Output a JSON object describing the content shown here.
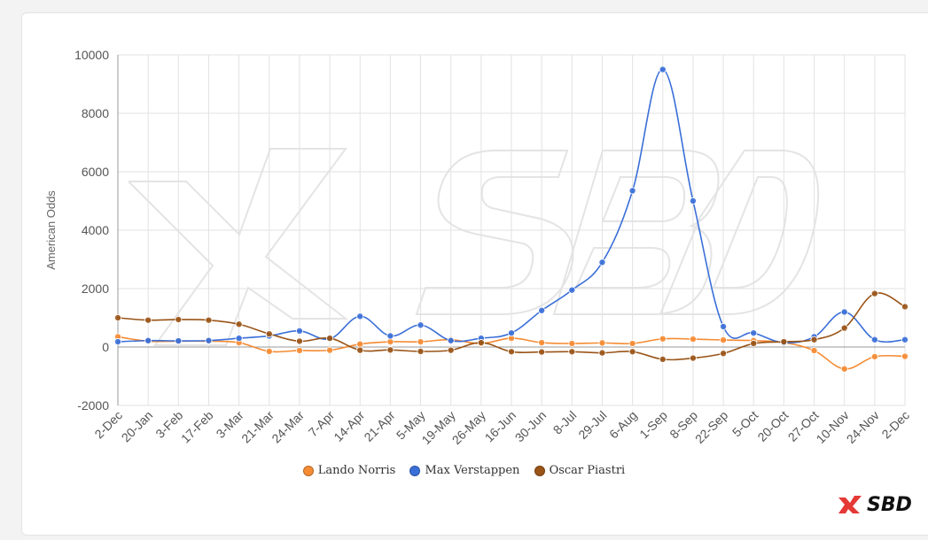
{
  "brand": {
    "name": "SBD",
    "accent": "#e53935"
  },
  "legend": [
    {
      "name": "Lando Norris",
      "color": "#f58b33"
    },
    {
      "name": "Max Verstappen",
      "color": "#3a6fd8"
    },
    {
      "name": "Oscar Piastri",
      "color": "#9a5417"
    }
  ],
  "chart_data": {
    "type": "line",
    "title": "",
    "xlabel": "",
    "ylabel": "American Odds",
    "ylim": [
      -2000,
      10000
    ],
    "yticks": [
      -2000,
      0,
      2000,
      4000,
      6000,
      8000,
      10000
    ],
    "grid": true,
    "legend_position": "bottom",
    "categories": [
      "2-Dec",
      "20-Jan",
      "3-Feb",
      "17-Feb",
      "3-Mar",
      "21-Mar",
      "24-Mar",
      "7-Apr",
      "14-Apr",
      "21-Apr",
      "5-May",
      "19-May",
      "26-May",
      "16-Jun",
      "30-Jun",
      "8-Jul",
      "29-Jul",
      "6-Aug",
      "1-Sep",
      "8-Sep",
      "22-Sep",
      "5-Oct",
      "20-Oct",
      "27-Oct",
      "10-Nov",
      "24-Nov",
      "2-Dec"
    ],
    "series": [
      {
        "name": "Lando Norris",
        "color": "#f58b33",
        "values": [
          350,
          200,
          200,
          200,
          150,
          -150,
          -120,
          -110,
          100,
          180,
          180,
          250,
          120,
          300,
          150,
          120,
          140,
          120,
          280,
          270,
          240,
          220,
          150,
          -120,
          -750,
          -330,
          -320
        ]
      },
      {
        "name": "Max Verstappen",
        "color": "#3a6fd8",
        "values": [
          180,
          220,
          210,
          220,
          300,
          380,
          550,
          280,
          1050,
          380,
          750,
          220,
          300,
          480,
          1250,
          1950,
          2900,
          5350,
          9500,
          5000,
          700,
          480,
          150,
          350,
          1200,
          250,
          250
        ]
      },
      {
        "name": "Oscar Piastri",
        "color": "#9a5417",
        "values": [
          1000,
          920,
          940,
          920,
          780,
          450,
          200,
          300,
          -110,
          -100,
          -150,
          -110,
          150,
          -160,
          -170,
          -160,
          -200,
          -160,
          -420,
          -380,
          -220,
          120,
          180,
          250,
          650,
          1830,
          1380
        ]
      }
    ]
  }
}
